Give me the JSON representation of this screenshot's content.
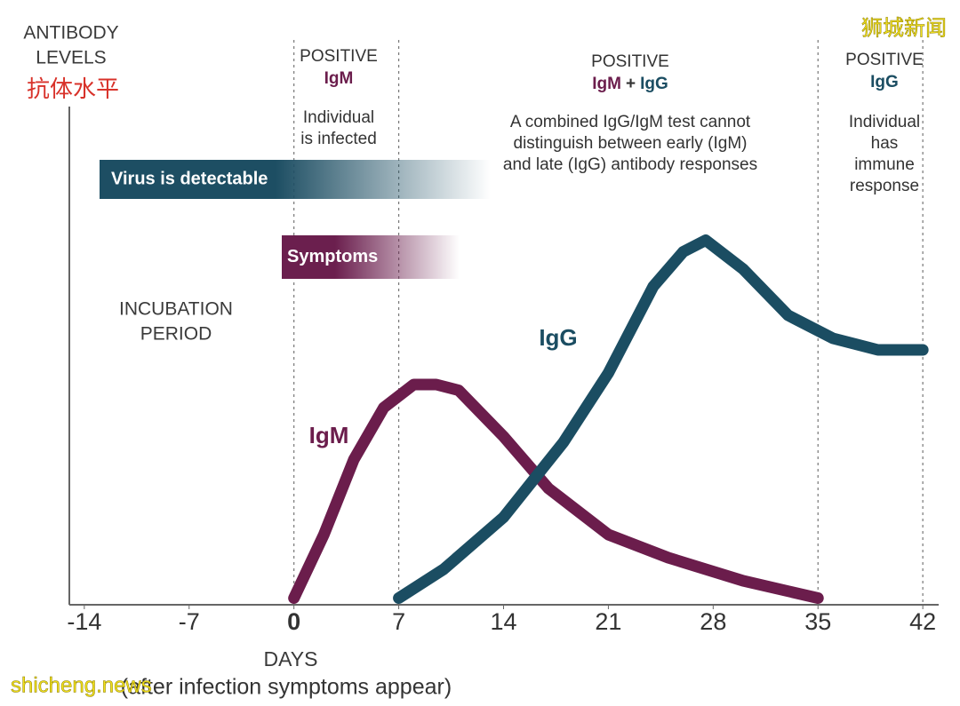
{
  "chart_data": {
    "type": "line",
    "y_label": [
      "ANTIBODY",
      "LEVELS"
    ],
    "y_label_zh": "抗体水平",
    "x_label": "DAYS",
    "x_sublabel": "(after infection symptoms appear)",
    "xlim": [
      -15,
      43
    ],
    "xticks": [
      -14,
      -7,
      0,
      7,
      14,
      21,
      28,
      35,
      42
    ],
    "ylim": [
      0,
      100
    ],
    "phase_boundaries": [
      0,
      7,
      35,
      42
    ],
    "series": [
      {
        "name": "IgM",
        "color": "#6b1d4c",
        "x": [
          0,
          2,
          4,
          6,
          8,
          9.5,
          11,
          14,
          17,
          21,
          25,
          30,
          35
        ],
        "values": [
          1,
          12,
          25,
          34,
          38,
          38,
          37,
          29,
          20,
          12,
          8,
          4,
          1
        ]
      },
      {
        "name": "IgG",
        "color": "#1b4d62",
        "x": [
          7,
          10,
          14,
          18,
          21,
          24,
          26,
          27.5,
          30,
          33,
          36,
          39,
          42
        ],
        "values": [
          1,
          6,
          15,
          28,
          40,
          55,
          61,
          63,
          58,
          50,
          46,
          44,
          44
        ]
      }
    ],
    "bars": [
      {
        "label": "Virus is detectable",
        "color": "#1d4e63"
      },
      {
        "label": "Symptoms",
        "color": "#6b1f4e"
      }
    ],
    "phases": [
      {
        "status": "POSITIVE",
        "tests": [
          "IgM"
        ],
        "note": [
          "Individual",
          "is infected"
        ]
      },
      {
        "status": "POSITIVE",
        "tests": [
          "IgM",
          "+",
          "IgG"
        ],
        "note": [
          "A combined IgG/IgM test cannot",
          "distinguish between early (IgM)",
          "and late (IgG) antibody responses"
        ]
      },
      {
        "status": "POSITIVE",
        "tests": [
          "IgG"
        ],
        "note": [
          "Individual",
          "has",
          "immune",
          "response"
        ]
      }
    ],
    "incubation": [
      "INCUBATION",
      "PERIOD"
    ],
    "watermarks": [
      "狮城新闻",
      "shicheng.news"
    ]
  }
}
